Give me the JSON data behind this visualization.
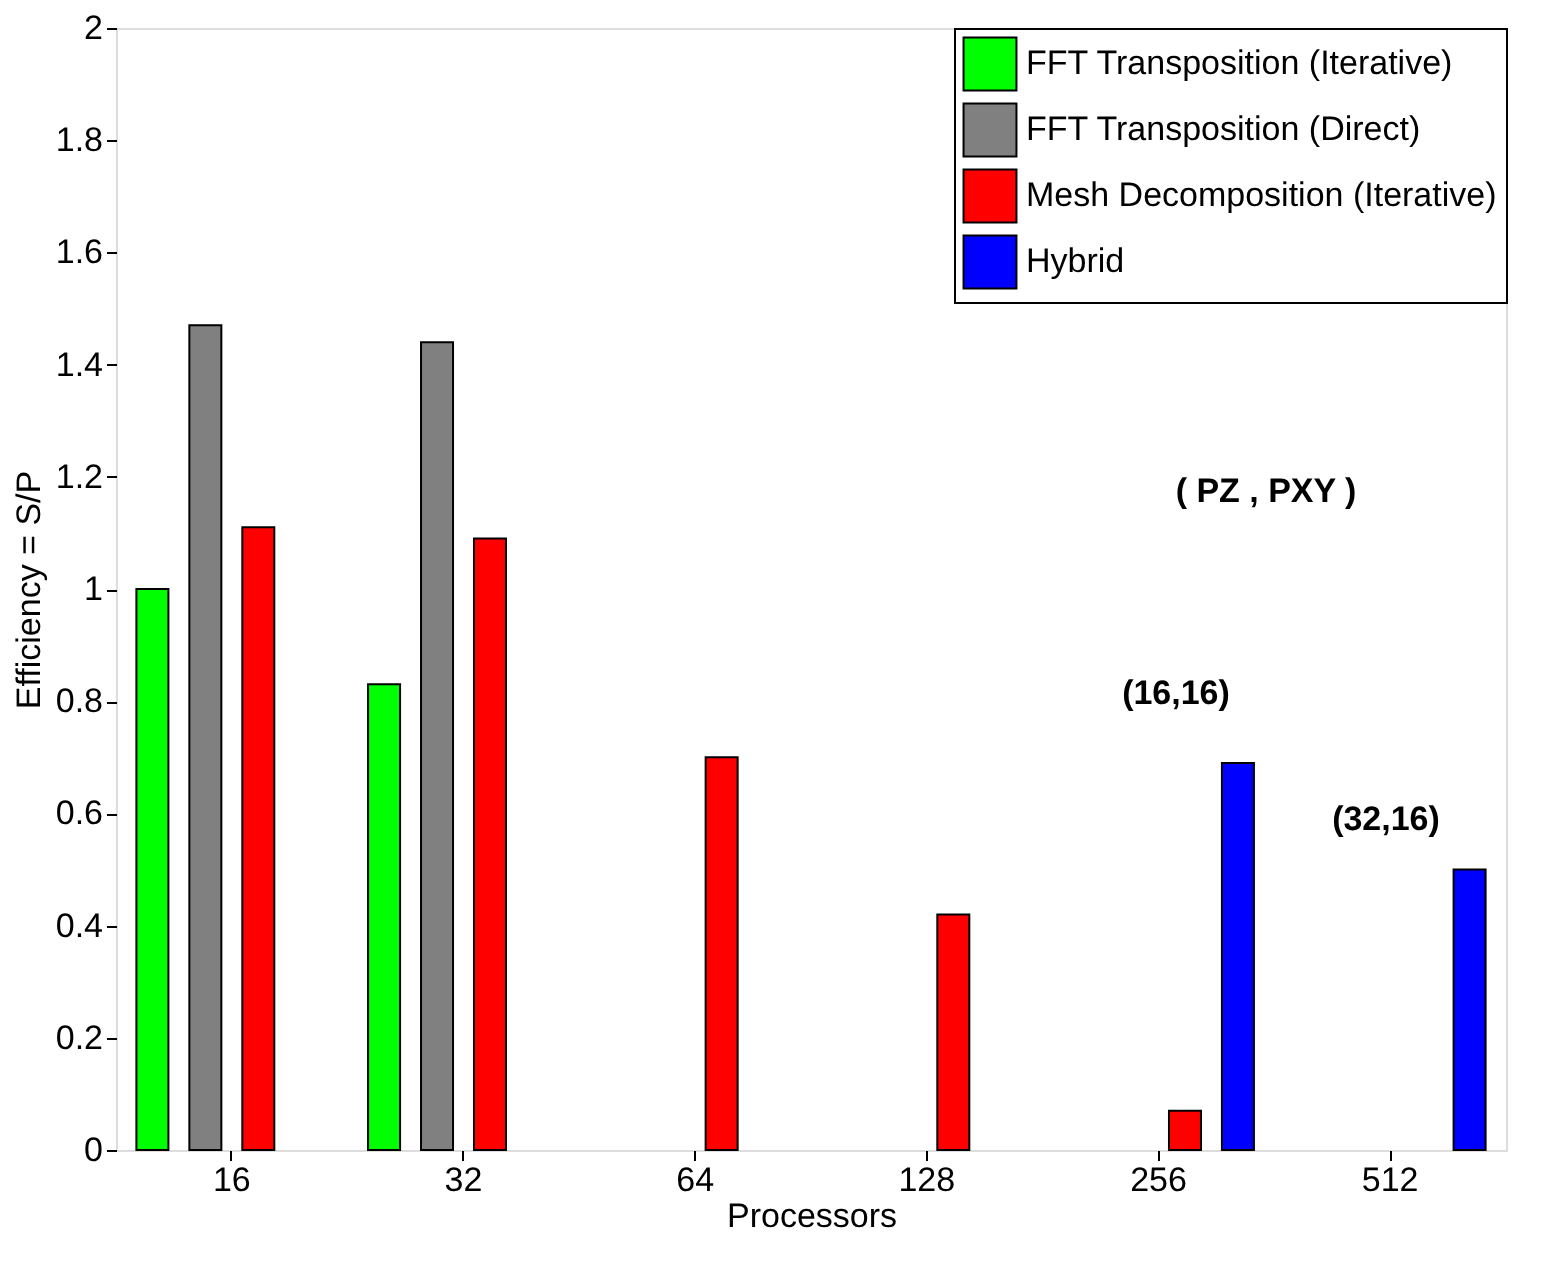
{
  "chart_data": {
    "type": "bar",
    "xlabel": "Processors",
    "ylabel": "Efficiency = S/P",
    "categories": [
      "16",
      "32",
      "64",
      "128",
      "256",
      "512"
    ],
    "series": [
      {
        "name": "FFT Transposition (Iterative)",
        "color": "#00ff00",
        "values": [
          1.0,
          0.83,
          null,
          null,
          null,
          null
        ]
      },
      {
        "name": "FFT Transposition (Direct)",
        "color": "#808080",
        "values": [
          1.47,
          1.44,
          null,
          null,
          null,
          null
        ]
      },
      {
        "name": "Mesh Decomposition (Iterative)",
        "color": "#ff0000",
        "values": [
          1.11,
          1.09,
          0.7,
          0.42,
          0.07,
          null
        ]
      },
      {
        "name": "Hybrid",
        "color": "#0000ff",
        "values": [
          null,
          null,
          null,
          null,
          0.69,
          0.5
        ]
      }
    ],
    "ylim": [
      0,
      2
    ],
    "yticks": [
      0,
      0.2,
      0.4,
      0.6,
      0.8,
      1,
      1.2,
      1.4,
      1.6,
      1.8,
      2
    ],
    "annotations": [
      "(16,16)",
      "(32,16)",
      "( PZ , PXY )"
    ],
    "legend": "top right",
    "grid": false
  }
}
